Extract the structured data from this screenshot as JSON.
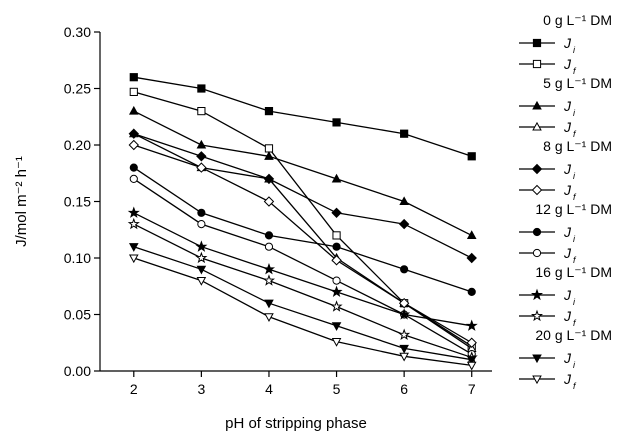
{
  "chart_data": {
    "type": "line",
    "xlabel": "pH of stripping phase",
    "ylabel": "J/mol m⁻² h⁻¹",
    "xlim": [
      1.5,
      7.3
    ],
    "ylim": [
      0.0,
      0.3
    ],
    "x_ticks": [
      2,
      3,
      4,
      5,
      6,
      7
    ],
    "y_ticks": [
      "0.00",
      "0.05",
      "0.10",
      "0.15",
      "0.20",
      "0.25",
      "0.30"
    ],
    "x": [
      2,
      3,
      4,
      5,
      6,
      7
    ],
    "grid": false,
    "legend_position": "right",
    "groups": [
      {
        "title": "0 g L⁻¹ DM",
        "series": [
          {
            "name": "J",
            "sub": "i",
            "marker": "square",
            "filled": true,
            "values": [
              0.26,
              0.25,
              0.23,
              0.22,
              0.21,
              0.19
            ]
          },
          {
            "name": "J",
            "sub": "f",
            "marker": "square",
            "filled": false,
            "values": [
              0.247,
              0.23,
              0.197,
              0.12,
              0.06,
              0.022
            ]
          }
        ]
      },
      {
        "title": "5 g L⁻¹ DM",
        "series": [
          {
            "name": "J",
            "sub": "i",
            "marker": "triangle",
            "filled": true,
            "values": [
              0.23,
              0.2,
              0.19,
              0.17,
              0.15,
              0.12
            ]
          },
          {
            "name": "J",
            "sub": "f",
            "marker": "triangle",
            "filled": false,
            "values": [
              0.21,
              0.18,
              0.17,
              0.1,
              0.06,
              0.02
            ]
          }
        ]
      },
      {
        "title": "8 g L⁻¹ DM",
        "series": [
          {
            "name": "J",
            "sub": "i",
            "marker": "diamond",
            "filled": true,
            "values": [
              0.21,
              0.19,
              0.17,
              0.14,
              0.13,
              0.1
            ]
          },
          {
            "name": "J",
            "sub": "f",
            "marker": "diamond",
            "filled": false,
            "values": [
              0.2,
              0.18,
              0.15,
              0.098,
              0.06,
              0.025
            ]
          }
        ]
      },
      {
        "title": "12 g L⁻¹ DM",
        "series": [
          {
            "name": "J",
            "sub": "i",
            "marker": "circle",
            "filled": true,
            "values": [
              0.18,
              0.14,
              0.12,
              0.11,
              0.09,
              0.07
            ]
          },
          {
            "name": "J",
            "sub": "f",
            "marker": "circle",
            "filled": false,
            "values": [
              0.17,
              0.13,
              0.11,
              0.08,
              0.05,
              0.015
            ]
          }
        ]
      },
      {
        "title": "16 g L⁻¹ DM",
        "series": [
          {
            "name": "J",
            "sub": "i",
            "marker": "star",
            "filled": true,
            "values": [
              0.14,
              0.11,
              0.09,
              0.07,
              0.05,
              0.04
            ]
          },
          {
            "name": "J",
            "sub": "f",
            "marker": "star",
            "filled": false,
            "values": [
              0.13,
              0.1,
              0.08,
              0.057,
              0.032,
              0.012
            ]
          }
        ]
      },
      {
        "title": "20 g L⁻¹ DM",
        "series": [
          {
            "name": "J",
            "sub": "i",
            "marker": "triangle-down",
            "filled": true,
            "values": [
              0.11,
              0.09,
              0.06,
              0.04,
              0.02,
              0.01
            ]
          },
          {
            "name": "J",
            "sub": "f",
            "marker": "triangle-down",
            "filled": false,
            "values": [
              0.1,
              0.08,
              0.048,
              0.026,
              0.013,
              0.005
            ]
          }
        ]
      }
    ]
  }
}
